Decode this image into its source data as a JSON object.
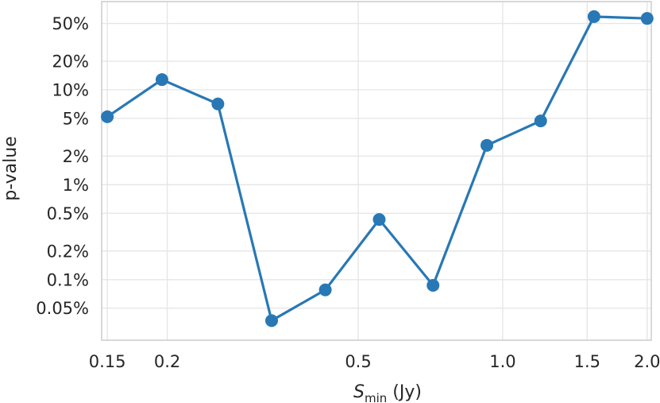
{
  "chart_data": {
    "type": "line",
    "title": "",
    "xlabel_main": "S",
    "xlabel_sub": "min",
    "xlabel_unit": " (Jy)",
    "ylabel": "p-value",
    "xscale": "log",
    "yscale": "log",
    "xlim": [
      0.146,
      2.04
    ],
    "ylim": [
      0.00023,
      0.85
    ],
    "x_ticks": [
      {
        "value": 0.15,
        "label": "0.15"
      },
      {
        "value": 0.2,
        "label": "0.2"
      },
      {
        "value": 0.5,
        "label": "0.5"
      },
      {
        "value": 1.0,
        "label": "1.0"
      },
      {
        "value": 1.5,
        "label": "1.5"
      },
      {
        "value": 2.0,
        "label": "2.0"
      }
    ],
    "y_ticks": [
      {
        "value": 0.0005,
        "label": "0.05%"
      },
      {
        "value": 0.001,
        "label": "0.1%"
      },
      {
        "value": 0.002,
        "label": "0.2%"
      },
      {
        "value": 0.005,
        "label": "0.5%"
      },
      {
        "value": 0.01,
        "label": "1%"
      },
      {
        "value": 0.02,
        "label": "2%"
      },
      {
        "value": 0.05,
        "label": "5%"
      },
      {
        "value": 0.1,
        "label": "10%"
      },
      {
        "value": 0.2,
        "label": "20%"
      },
      {
        "value": 0.5,
        "label": "50%"
      }
    ],
    "grid": true,
    "series": [
      {
        "color": "#2878b5",
        "points": [
          {
            "x": 0.15,
            "y": 0.052
          },
          {
            "x": 0.195,
            "y": 0.128
          },
          {
            "x": 0.255,
            "y": 0.071
          },
          {
            "x": 0.33,
            "y": 0.00037
          },
          {
            "x": 0.427,
            "y": 0.00078
          },
          {
            "x": 0.553,
            "y": 0.0043
          },
          {
            "x": 0.716,
            "y": 0.00087
          },
          {
            "x": 0.927,
            "y": 0.026
          },
          {
            "x": 1.2,
            "y": 0.047
          },
          {
            "x": 1.55,
            "y": 0.59
          },
          {
            "x": 2.0,
            "y": 0.565
          }
        ]
      }
    ]
  }
}
